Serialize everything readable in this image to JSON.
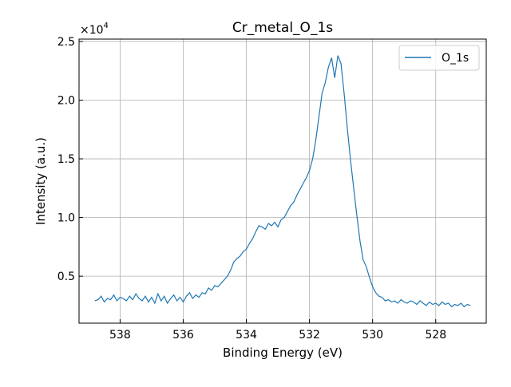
{
  "chart_data": {
    "type": "line",
    "title": "Cr_metal_O_1s",
    "xlabel": "Binding Energy (eV)",
    "ylabel": "Intensity (a.u.)",
    "y_scale_label": "×10",
    "y_scale_exponent": "4",
    "x_reversed": true,
    "xlim": [
      539.3,
      526.4
    ],
    "ylim": [
      0.1,
      2.52
    ],
    "x_ticks": [
      538,
      536,
      534,
      532,
      530,
      528
    ],
    "x_tick_labels": [
      "538",
      "536",
      "534",
      "532",
      "530",
      "528"
    ],
    "y_ticks": [
      0.5,
      1.0,
      1.5,
      2.0,
      2.5
    ],
    "y_tick_labels": [
      "0.5",
      "1.0",
      "1.5",
      "2.0",
      "2.5"
    ],
    "grid": true,
    "legend_position": "top-right",
    "series": [
      {
        "name": "O_1s",
        "color": "#1f77b4",
        "x": [
          538.8,
          538.7,
          538.6,
          538.5,
          538.4,
          538.3,
          538.2,
          538.1,
          538.0,
          537.9,
          537.8,
          537.7,
          537.6,
          537.5,
          537.4,
          537.3,
          537.2,
          537.1,
          537.0,
          536.9,
          536.8,
          536.7,
          536.6,
          536.5,
          536.4,
          536.3,
          536.2,
          536.1,
          536.0,
          535.9,
          535.8,
          535.7,
          535.6,
          535.5,
          535.4,
          535.3,
          535.2,
          535.1,
          535.0,
          534.9,
          534.8,
          534.7,
          534.6,
          534.5,
          534.4,
          534.3,
          534.2,
          534.1,
          534.0,
          533.9,
          533.8,
          533.7,
          533.6,
          533.5,
          533.4,
          533.3,
          533.2,
          533.1,
          533.0,
          532.9,
          532.8,
          532.7,
          532.6,
          532.5,
          532.4,
          532.3,
          532.2,
          532.1,
          532.0,
          531.9,
          531.8,
          531.7,
          531.6,
          531.5,
          531.4,
          531.3,
          531.2,
          531.1,
          531.0,
          530.9,
          530.8,
          530.7,
          530.6,
          530.5,
          530.4,
          530.3,
          530.2,
          530.1,
          530.0,
          529.9,
          529.8,
          529.7,
          529.6,
          529.5,
          529.4,
          529.3,
          529.2,
          529.1,
          529.0,
          528.9,
          528.8,
          528.7,
          528.6,
          528.5,
          528.4,
          528.3,
          528.2,
          528.1,
          528.0,
          527.9,
          527.8,
          527.7,
          527.6,
          527.5,
          527.4,
          527.3,
          527.2,
          527.1,
          527.0,
          526.9
        ],
        "y": [
          0.29,
          0.3,
          0.33,
          0.28,
          0.31,
          0.3,
          0.34,
          0.29,
          0.32,
          0.31,
          0.29,
          0.33,
          0.3,
          0.35,
          0.31,
          0.29,
          0.33,
          0.28,
          0.32,
          0.27,
          0.35,
          0.29,
          0.33,
          0.27,
          0.31,
          0.34,
          0.29,
          0.32,
          0.28,
          0.33,
          0.36,
          0.31,
          0.34,
          0.32,
          0.36,
          0.35,
          0.4,
          0.38,
          0.42,
          0.41,
          0.44,
          0.47,
          0.5,
          0.55,
          0.62,
          0.65,
          0.67,
          0.71,
          0.73,
          0.78,
          0.82,
          0.88,
          0.93,
          0.92,
          0.9,
          0.95,
          0.93,
          0.96,
          0.92,
          0.98,
          1.0,
          1.05,
          1.1,
          1.13,
          1.19,
          1.24,
          1.29,
          1.34,
          1.4,
          1.5,
          1.66,
          1.86,
          2.06,
          2.15,
          2.28,
          2.36,
          2.19,
          2.38,
          2.31,
          2.05,
          1.76,
          1.49,
          1.25,
          1.02,
          0.8,
          0.64,
          0.58,
          0.49,
          0.41,
          0.36,
          0.33,
          0.32,
          0.29,
          0.3,
          0.28,
          0.29,
          0.27,
          0.3,
          0.28,
          0.27,
          0.29,
          0.28,
          0.26,
          0.29,
          0.27,
          0.25,
          0.28,
          0.26,
          0.27,
          0.25,
          0.28,
          0.26,
          0.27,
          0.24,
          0.26,
          0.25,
          0.27,
          0.24,
          0.26,
          0.25
        ]
      }
    ]
  }
}
